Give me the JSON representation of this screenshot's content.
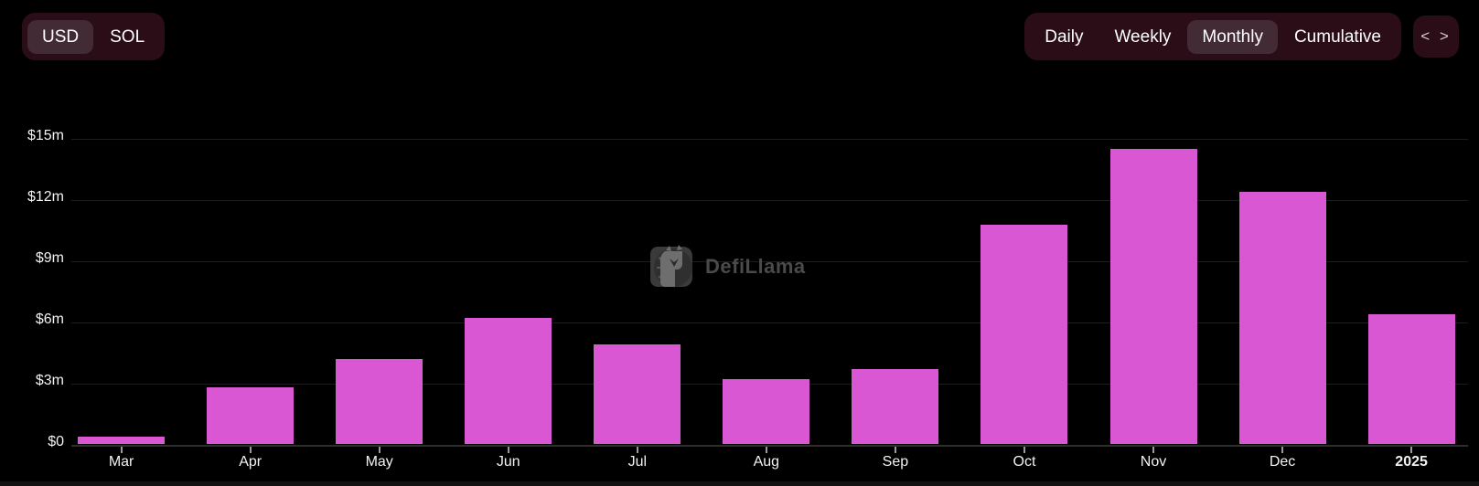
{
  "colors": {
    "background": "#000000",
    "bar": "#d957d3",
    "toggle_group_bg": "#2b0d18",
    "toggle_selected_bg": "#422b35",
    "gridline": "#1d1d1d",
    "axis_line": "#2e2e2e",
    "text": "#f2f2f2",
    "watermark_text": "#4a4a4a"
  },
  "currency_toggle": {
    "options": [
      {
        "label": "USD",
        "selected": true
      },
      {
        "label": "SOL",
        "selected": false
      }
    ]
  },
  "interval_toggle": {
    "options": [
      {
        "label": "Daily",
        "selected": false
      },
      {
        "label": "Weekly",
        "selected": false
      },
      {
        "label": "Monthly",
        "selected": true
      },
      {
        "label": "Cumulative",
        "selected": false
      }
    ]
  },
  "embed_button": {
    "glyph": "< >"
  },
  "watermark": {
    "label": "DefiLlama"
  },
  "chart_data": {
    "type": "bar",
    "categories": [
      "Mar",
      "Apr",
      "May",
      "Jun",
      "Jul",
      "Aug",
      "Sep",
      "Oct",
      "Nov",
      "Dec",
      "2025"
    ],
    "values": [
      0.4,
      2.8,
      4.2,
      6.2,
      4.9,
      3.2,
      3.7,
      10.8,
      14.5,
      12.4,
      6.4
    ],
    "values_unit": "USD millions",
    "title": "",
    "xlabel": "",
    "ylabel": "",
    "y_ticks": [
      {
        "label": "$15m",
        "value": 15
      },
      {
        "label": "$12m",
        "value": 12
      },
      {
        "label": "$9m",
        "value": 9
      },
      {
        "label": "$6m",
        "value": 6
      },
      {
        "label": "$3m",
        "value": 3
      },
      {
        "label": "$0",
        "value": 0
      }
    ],
    "ylim": [
      0,
      16
    ],
    "grid": true,
    "legend": false,
    "bar_color": "#d957d3",
    "last_category_bold": true
  }
}
